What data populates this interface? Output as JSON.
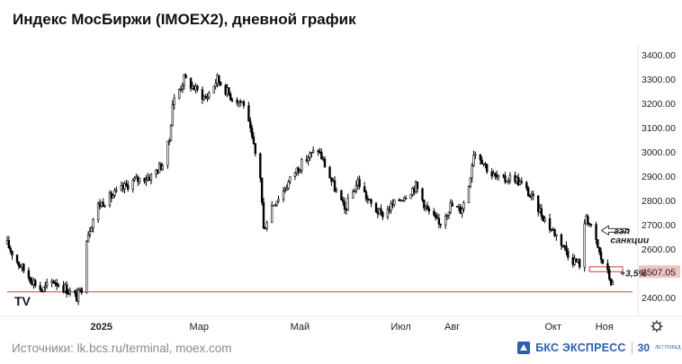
{
  "title": "Индекс МосБиржи (IMOEX2), дневной график",
  "sources": "Источники: lk.bcs.ru/terminal, moex.com",
  "brand": {
    "name": "БКС ЭКСПРЕСС",
    "years": "30",
    "years_sub": "ЛЕТ ПОБЕД",
    "color": "#2b5fb2"
  },
  "watermark": "TV",
  "chart_data": {
    "type": "candlestick",
    "y_axis": {
      "ticks": [
        2400,
        2500,
        2600,
        2700,
        2800,
        2900,
        3000,
        3100,
        3200,
        3300,
        3400
      ],
      "tick_labels": [
        "2400.00",
        "2500.00",
        "2600.00",
        "2700.00",
        "2800.00",
        "2900.00",
        "3000.00",
        "3100.00",
        "3200.00",
        "3300.00",
        "3400.00"
      ],
      "highlight_label": "2507.05",
      "range": [
        2360,
        3440
      ]
    },
    "x_axis": {
      "labels": [
        {
          "text": "2025",
          "date": "2025-01-01",
          "bold": true
        },
        {
          "text": "Мар",
          "date": "2025-03-01"
        },
        {
          "text": "Май",
          "date": "2025-05-01"
        },
        {
          "text": "Июл",
          "date": "2025-07-01"
        },
        {
          "text": "Авг",
          "date": "2025-08-01"
        },
        {
          "text": "Окт",
          "date": "2025-10-01"
        },
        {
          "text": "Ноя",
          "date": "2025-11-01"
        }
      ],
      "range": [
        "2024-11-05",
        "2025-11-18"
      ]
    },
    "price_path": [
      [
        "2024-11-05",
        2620
      ],
      [
        "2024-11-12",
        2540
      ],
      [
        "2024-11-19",
        2480
      ],
      [
        "2024-11-26",
        2430
      ],
      [
        "2024-12-03",
        2470
      ],
      [
        "2024-12-10",
        2440
      ],
      [
        "2024-12-17",
        2400
      ],
      [
        "2024-12-20",
        2440
      ],
      [
        "2024-12-23",
        2650
      ],
      [
        "2024-12-30",
        2780
      ],
      [
        "2025-01-10",
        2830
      ],
      [
        "2025-01-20",
        2880
      ],
      [
        "2025-01-31",
        2900
      ],
      [
        "2025-02-07",
        2950
      ],
      [
        "2025-02-11",
        3050
      ],
      [
        "2025-02-13",
        3200
      ],
      [
        "2025-02-20",
        3300
      ],
      [
        "2025-02-28",
        3250
      ],
      [
        "2025-03-05",
        3220
      ],
      [
        "2025-03-12",
        3300
      ],
      [
        "2025-03-20",
        3230
      ],
      [
        "2025-03-28",
        3200
      ],
      [
        "2025-04-07",
        2900
      ],
      [
        "2025-04-09",
        2680
      ],
      [
        "2025-04-14",
        2780
      ],
      [
        "2025-04-21",
        2840
      ],
      [
        "2025-04-28",
        2920
      ],
      [
        "2025-05-06",
        2980
      ],
      [
        "2025-05-12",
        3010
      ],
      [
        "2025-05-20",
        2880
      ],
      [
        "2025-05-28",
        2760
      ],
      [
        "2025-06-05",
        2880
      ],
      [
        "2025-06-12",
        2790
      ],
      [
        "2025-06-19",
        2740
      ],
      [
        "2025-06-26",
        2780
      ],
      [
        "2025-07-03",
        2820
      ],
      [
        "2025-07-10",
        2860
      ],
      [
        "2025-07-17",
        2760
      ],
      [
        "2025-07-24",
        2700
      ],
      [
        "2025-07-31",
        2780
      ],
      [
        "2025-08-06",
        2760
      ],
      [
        "2025-08-10",
        2820
      ],
      [
        "2025-08-14",
        3000
      ],
      [
        "2025-08-18",
        2980
      ],
      [
        "2025-08-24",
        2910
      ],
      [
        "2025-08-31",
        2880
      ],
      [
        "2025-09-07",
        2900
      ],
      [
        "2025-09-14",
        2850
      ],
      [
        "2025-09-21",
        2780
      ],
      [
        "2025-09-28",
        2700
      ],
      [
        "2025-10-05",
        2640
      ],
      [
        "2025-10-12",
        2560
      ],
      [
        "2025-10-17",
        2540
      ],
      [
        "2025-10-21",
        2740
      ],
      [
        "2025-10-26",
        2650
      ],
      [
        "2025-10-30",
        2560
      ],
      [
        "2025-11-03",
        2500
      ],
      [
        "2025-11-06",
        2450
      ]
    ],
    "annotations": [
      {
        "text": "гэп",
        "kind": "arrow-label",
        "date": "2025-10-28",
        "price": 2662
      },
      {
        "text": "санкции",
        "kind": "arrow-label",
        "date": "2025-10-28",
        "price": 2625
      },
      {
        "text": "+3,5%",
        "kind": "label",
        "date": "2025-11-06",
        "price": 2487
      }
    ],
    "gap_zone": {
      "from_date": "2025-10-23",
      "to_date": "2025-11-12",
      "low": 2507,
      "high": 2527
    },
    "support_level": 2424,
    "colors": {
      "candle": "#000000",
      "support_line": "#d43a3a",
      "gap_box": "#d43a3a",
      "highlight_label_bg": "#f3c2c2"
    },
    "grid": false
  }
}
